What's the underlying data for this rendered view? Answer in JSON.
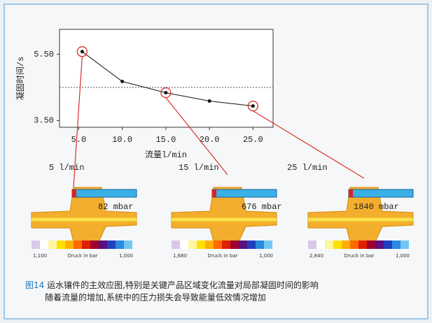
{
  "chart_data": {
    "type": "line",
    "xlabel": "流量l/min",
    "ylabel": "凝固时间/s",
    "x": [
      5.4,
      10,
      15,
      20,
      25
    ],
    "values": [
      5.58,
      4.68,
      4.34,
      4.09,
      3.94
    ],
    "color": "#111111",
    "xlim": [
      2.8,
      27.3
    ],
    "ylim": [
      3.3,
      6.25
    ],
    "xticks": [
      {
        "value": 5,
        "label": "5.0"
      },
      {
        "value": 10,
        "label": "10.0"
      },
      {
        "value": 15,
        "label": "15.0"
      },
      {
        "value": 20,
        "label": "20.0"
      },
      {
        "value": 25,
        "label": "25.0"
      }
    ],
    "yticks": [
      {
        "value": 3.5,
        "label": "3.50"
      },
      {
        "value": 5.5,
        "label": "5.50"
      }
    ],
    "reference_line": 4.5,
    "highlighted_points": [
      0,
      2,
      4
    ],
    "highlight_color": "#d8302a"
  },
  "panels": [
    {
      "flow": "5 l/min",
      "pressure": "82 mbar",
      "scale_min": "1,100",
      "scale_name": "Druck in bar",
      "scale_max": "1,000"
    },
    {
      "flow": "15 l/min",
      "pressure": "676 mbar",
      "scale_min": "1,680",
      "scale_name": "Druck in bar",
      "scale_max": "1,000"
    },
    {
      "flow": "25 l/min",
      "pressure": "1840 mbar",
      "scale_min": "2,840",
      "scale_name": "Druck in bar",
      "scale_max": "1,000"
    }
  ],
  "caption": {
    "label": "图14",
    "line1": " 运水镶件的主效应图,特别是关键产品区域变化流量对局部凝固时间的影响",
    "line2": "随着流量的增加,系统中的压力损失会导致能量低效情况增加"
  }
}
